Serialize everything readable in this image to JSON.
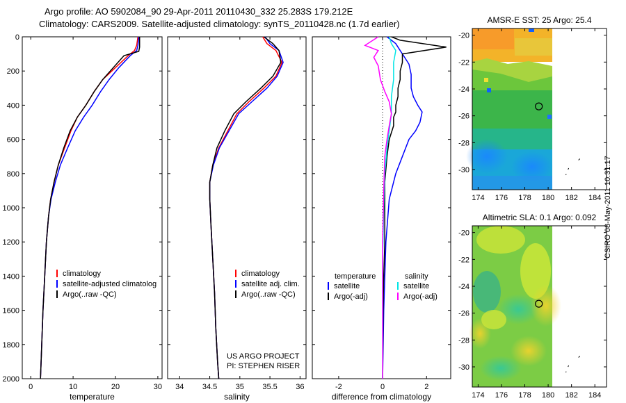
{
  "header": {
    "line1": "Argo profile: AO 5902084_90 29-Apr-2011 20110430_332 25.283S 179.212E",
    "line2": "Climatology: CARS2009. Satellite-adjusted climatology: synTS_20110428.nc (1.7d earlier)"
  },
  "side_label": "CSIRO 08-May-2011 10:31:17",
  "colors": {
    "climatology": "#ff0000",
    "satellite": "#0000ff",
    "argo": "#000000",
    "sal_satellite": "#00e5e5",
    "sal_argo": "#ff00ff"
  },
  "chart_data": [
    {
      "type": "line",
      "xlabel": "temperature",
      "ylim": [
        2000,
        0
      ],
      "xlim": [
        -2,
        31
      ],
      "xticks": [
        0,
        10,
        20,
        30
      ],
      "yticks": [
        0,
        200,
        400,
        600,
        800,
        1000,
        1200,
        1400,
        1600,
        1800,
        2000
      ],
      "legend": {
        "placement": "lower-right",
        "entries": [
          "climatology",
          "satellite-adjusted climatolog",
          "Argo(..raw -QC)"
        ]
      },
      "series": [
        {
          "name": "climatology",
          "color": "#ff0000",
          "points": [
            [
              25.3,
              0
            ],
            [
              25.0,
              50
            ],
            [
              24.5,
              80
            ],
            [
              23,
              110
            ],
            [
              20,
              180
            ],
            [
              17,
              250
            ],
            [
              15,
              320
            ],
            [
              13,
              400
            ],
            [
              11,
              470
            ],
            [
              9.5,
              550
            ],
            [
              8,
              650
            ],
            [
              6.5,
              750
            ],
            [
              5.5,
              850
            ],
            [
              4.7,
              950
            ],
            [
              4.2,
              1050
            ],
            [
              3.7,
              1200
            ],
            [
              3.3,
              1400
            ],
            [
              2.9,
              1600
            ],
            [
              2.6,
              1800
            ],
            [
              2.3,
              2000
            ]
          ]
        },
        {
          "name": "satellite-adjusted climatolog",
          "color": "#0000ff",
          "points": [
            [
              25.5,
              0
            ],
            [
              25.3,
              50
            ],
            [
              25,
              80
            ],
            [
              23.5,
              110
            ],
            [
              20.8,
              180
            ],
            [
              18.5,
              250
            ],
            [
              16.5,
              320
            ],
            [
              14.5,
              400
            ],
            [
              12.5,
              470
            ],
            [
              10.5,
              550
            ],
            [
              8.7,
              650
            ],
            [
              7,
              750
            ],
            [
              5.8,
              850
            ],
            [
              4.8,
              950
            ],
            [
              4.2,
              1050
            ],
            [
              3.7,
              1200
            ],
            [
              3.3,
              1400
            ],
            [
              2.9,
              1600
            ],
            [
              2.6,
              1800
            ],
            [
              2.3,
              2000
            ]
          ]
        },
        {
          "name": "Argo(..raw -QC)",
          "color": "#000000",
          "points": [
            [
              25.7,
              0
            ],
            [
              25.7,
              60
            ],
            [
              25.5,
              85
            ],
            [
              22,
              110
            ],
            [
              19.5,
              180
            ],
            [
              17,
              250
            ],
            [
              15,
              320
            ],
            [
              13,
              400
            ],
            [
              11,
              470
            ],
            [
              9.3,
              550
            ],
            [
              7.8,
              650
            ],
            [
              6.5,
              750
            ],
            [
              5.5,
              850
            ],
            [
              4.7,
              950
            ],
            [
              4.2,
              1050
            ],
            [
              3.7,
              1200
            ],
            [
              3.3,
              1400
            ],
            [
              2.9,
              1600
            ],
            [
              2.6,
              1800
            ],
            [
              2.3,
              2000
            ]
          ]
        }
      ]
    },
    {
      "type": "line",
      "xlabel": "salinity",
      "ylim": [
        2000,
        0
      ],
      "xlim": [
        33.8,
        36.1
      ],
      "xticks": [
        34,
        34.5,
        35,
        35.5,
        36
      ],
      "legend": {
        "placement": "lower-right",
        "entries": [
          "climatology",
          "satellite adj. clim.",
          "Argo(..raw -QC)"
        ]
      },
      "annotation": [
        "US ARGO PROJECT",
        "PI: STEPHEN RISER"
      ],
      "series": [
        {
          "name": "climatology",
          "color": "#ff0000",
          "points": [
            [
              35.38,
              0
            ],
            [
              35.45,
              40
            ],
            [
              35.6,
              80
            ],
            [
              35.7,
              150
            ],
            [
              35.6,
              230
            ],
            [
              35.4,
              300
            ],
            [
              35.15,
              380
            ],
            [
              34.95,
              450
            ],
            [
              34.8,
              550
            ],
            [
              34.65,
              650
            ],
            [
              34.55,
              750
            ],
            [
              34.5,
              850
            ],
            [
              34.5,
              950
            ],
            [
              34.52,
              1100
            ],
            [
              34.55,
              1300
            ],
            [
              34.58,
              1500
            ],
            [
              34.6,
              1700
            ],
            [
              34.63,
              1900
            ],
            [
              34.65,
              2000
            ]
          ]
        },
        {
          "name": "satellite adj. clim.",
          "color": "#0000ff",
          "points": [
            [
              35.42,
              0
            ],
            [
              35.5,
              40
            ],
            [
              35.65,
              80
            ],
            [
              35.72,
              150
            ],
            [
              35.62,
              230
            ],
            [
              35.45,
              300
            ],
            [
              35.2,
              380
            ],
            [
              34.98,
              450
            ],
            [
              34.82,
              550
            ],
            [
              34.66,
              650
            ],
            [
              34.56,
              750
            ],
            [
              34.5,
              850
            ],
            [
              34.5,
              950
            ],
            [
              34.52,
              1100
            ],
            [
              34.55,
              1300
            ],
            [
              34.58,
              1500
            ],
            [
              34.6,
              1700
            ],
            [
              34.63,
              1900
            ],
            [
              34.65,
              2000
            ]
          ]
        },
        {
          "name": "Argo(..raw -QC)",
          "color": "#000000",
          "points": [
            [
              35.4,
              0
            ],
            [
              35.55,
              40
            ],
            [
              35.65,
              80
            ],
            [
              35.68,
              150
            ],
            [
              35.55,
              230
            ],
            [
              35.35,
              300
            ],
            [
              35.1,
              380
            ],
            [
              34.9,
              450
            ],
            [
              34.75,
              550
            ],
            [
              34.62,
              650
            ],
            [
              34.55,
              750
            ],
            [
              34.5,
              850
            ],
            [
              34.5,
              950
            ],
            [
              34.52,
              1100
            ],
            [
              34.55,
              1300
            ],
            [
              34.58,
              1500
            ],
            [
              34.6,
              1700
            ],
            [
              34.63,
              1900
            ],
            [
              34.65,
              2000
            ]
          ]
        }
      ]
    },
    {
      "type": "line",
      "xlabel": "difference from climatology",
      "ylim": [
        2000,
        0
      ],
      "xlim": [
        -3.2,
        3.1
      ],
      "xticks": [
        -2,
        0,
        2
      ],
      "legend": {
        "placement": "lower-center",
        "groups": [
          {
            "heading": "temperature",
            "entries": [
              "satellite",
              "Argo(-adj)"
            ]
          },
          {
            "heading": "salinity",
            "entries": [
              "satellite",
              "Argo(-adj)"
            ]
          }
        ]
      },
      "series": [
        {
          "name": "satellite",
          "group": "temperature",
          "color": "#0000ff",
          "points": [
            [
              0.2,
              0
            ],
            [
              0.6,
              40
            ],
            [
              0.8,
              80
            ],
            [
              1.0,
              120
            ],
            [
              1.2,
              160
            ],
            [
              1.3,
              220
            ],
            [
              1.3,
              300
            ],
            [
              1.4,
              350
            ],
            [
              1.6,
              400
            ],
            [
              1.8,
              440
            ],
            [
              1.7,
              500
            ],
            [
              1.5,
              550
            ],
            [
              1.2,
              600
            ],
            [
              0.9,
              700
            ],
            [
              0.6,
              800
            ],
            [
              0.3,
              950
            ],
            [
              0.15,
              1200
            ],
            [
              0.05,
              1600
            ],
            [
              0,
              2000
            ]
          ]
        },
        {
          "name": "Argo(-adj)",
          "group": "temperature",
          "color": "#000000",
          "points": [
            [
              0.4,
              0
            ],
            [
              0.8,
              20
            ],
            [
              2.9,
              60
            ],
            [
              0.9,
              100
            ],
            [
              0.9,
              150
            ],
            [
              0.8,
              200
            ],
            [
              0.8,
              250
            ],
            [
              0.7,
              300
            ],
            [
              0.7,
              350
            ],
            [
              0.6,
              400
            ],
            [
              0.6,
              440
            ],
            [
              0.5,
              470
            ],
            [
              0.5,
              520
            ],
            [
              0.3,
              600
            ],
            [
              0.2,
              700
            ],
            [
              0.1,
              850
            ],
            [
              0.1,
              1000
            ],
            [
              0.1,
              1200
            ],
            [
              0.05,
              1400
            ],
            [
              0.02,
              1600
            ],
            [
              0,
              2000
            ]
          ]
        },
        {
          "name": "satellite",
          "group": "salinity",
          "color": "#00e5e5",
          "points": [
            [
              0.3,
              0
            ],
            [
              0.4,
              40
            ],
            [
              0.6,
              80
            ],
            [
              0.5,
              150
            ],
            [
              0.5,
              250
            ],
            [
              0.4,
              350
            ],
            [
              0.4,
              450
            ],
            [
              0.3,
              550
            ],
            [
              0.2,
              650
            ],
            [
              0.1,
              800
            ],
            [
              0.05,
              1000
            ],
            [
              0,
              1300
            ],
            [
              0,
              1600
            ],
            [
              0,
              2000
            ]
          ]
        },
        {
          "name": "Argo(-adj)",
          "group": "salinity",
          "color": "#ff00ff",
          "points": [
            [
              -0.2,
              0
            ],
            [
              -0.8,
              50
            ],
            [
              -0.2,
              80
            ],
            [
              -0.4,
              120
            ],
            [
              -0.2,
              170
            ],
            [
              -0.1,
              250
            ],
            [
              0.1,
              320
            ],
            [
              0.3,
              380
            ],
            [
              0.4,
              450
            ],
            [
              0.3,
              520
            ],
            [
              0.2,
              600
            ],
            [
              0.1,
              700
            ],
            [
              0.05,
              900
            ],
            [
              0,
              1200
            ],
            [
              0,
              2000
            ]
          ]
        }
      ]
    },
    {
      "type": "heatmap",
      "title": "AMSR-E SST: 25 Argo: 25.4",
      "xticks": [
        174,
        176,
        178,
        180,
        182,
        184
      ],
      "yticks": [
        -20,
        -22,
        -24,
        -26,
        -28,
        -30
      ],
      "xlim": [
        173.5,
        185
      ],
      "ylim": [
        -31.5,
        -19.5
      ],
      "marker": {
        "x": 179.2,
        "y": -25.3
      },
      "colormap": "jet"
    },
    {
      "type": "heatmap",
      "title": "Altimetric SLA: 0.1 Argo: 0.092",
      "xticks": [
        174,
        176,
        178,
        180,
        182,
        184
      ],
      "yticks": [
        -20,
        -22,
        -24,
        -26,
        -28,
        -30
      ],
      "xlim": [
        173.5,
        185
      ],
      "ylim": [
        -31.5,
        -19.5
      ],
      "marker": {
        "x": 179.2,
        "y": -25.3
      },
      "colormap": "jet"
    }
  ]
}
